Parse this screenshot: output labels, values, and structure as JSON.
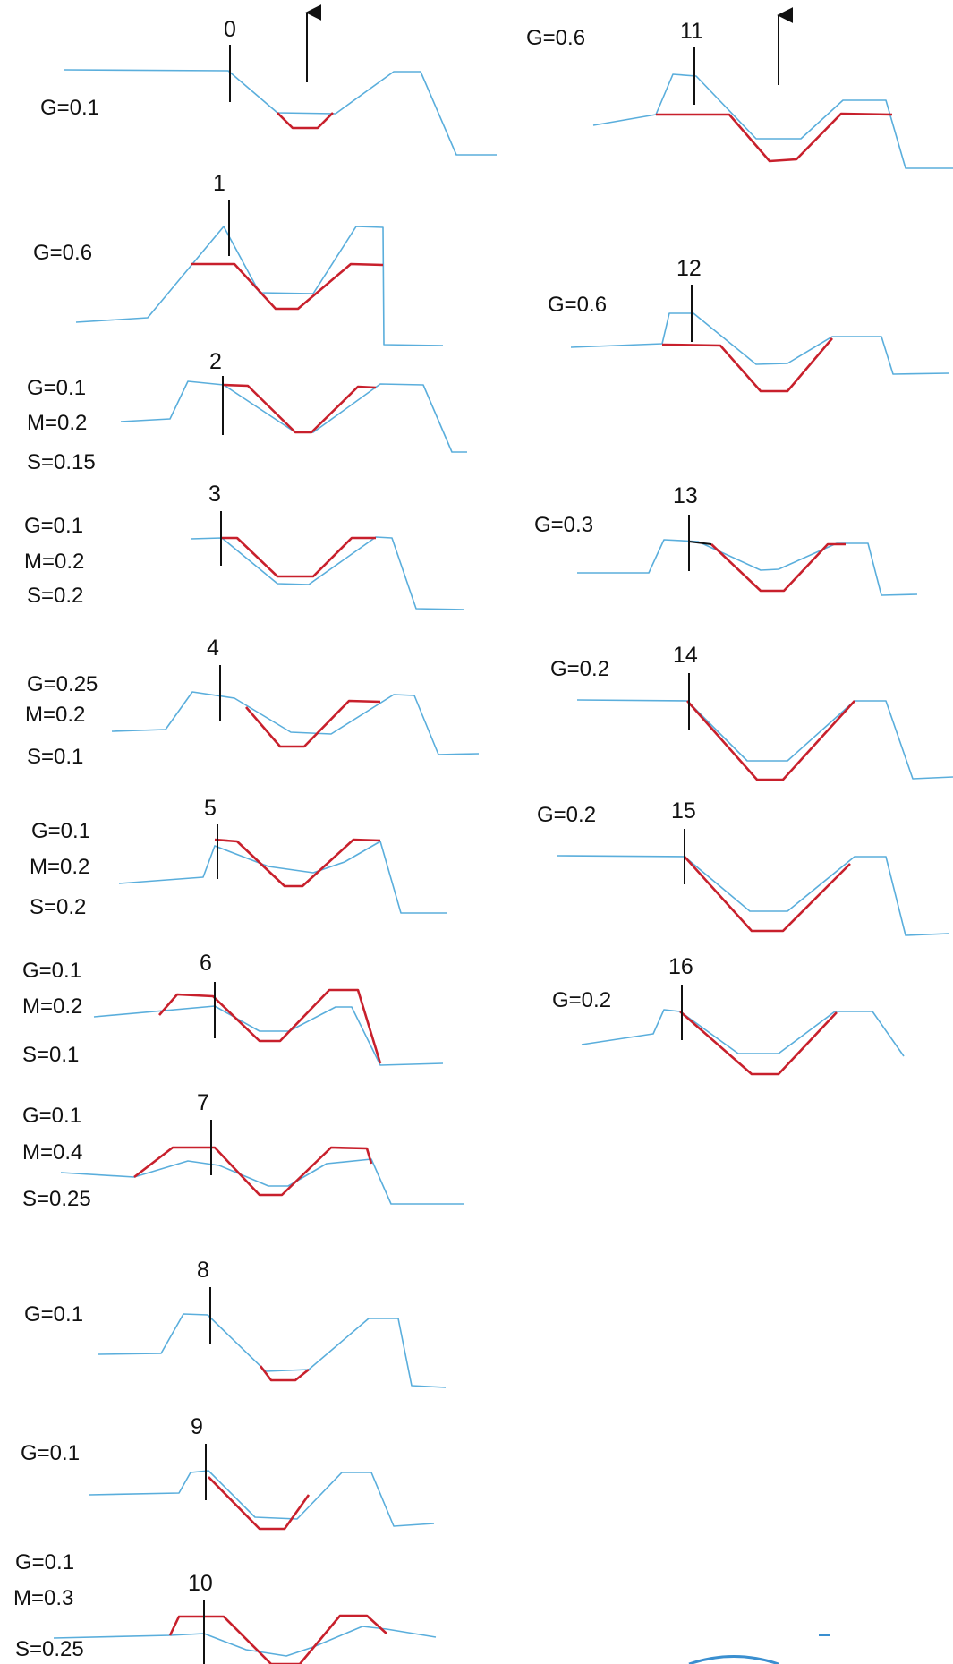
{
  "colors": {
    "blue_line": "#5aaedc",
    "red_line": "#c8202c",
    "marker": "#111111",
    "text": "#111111"
  },
  "panels": [
    {
      "index": "0",
      "params": [
        "G=0.1"
      ]
    },
    {
      "index": "1",
      "params": [
        "G=0.6"
      ]
    },
    {
      "index": "2",
      "params": [
        "G=0.1",
        "M=0.2",
        "S=0.15"
      ]
    },
    {
      "index": "3",
      "params": [
        "G=0.1",
        "M=0.2",
        "S=0.2"
      ]
    },
    {
      "index": "4",
      "params": [
        "G=0.25",
        "M=0.2",
        "S=0.1"
      ]
    },
    {
      "index": "5",
      "params": [
        "G=0.1",
        "M=0.2",
        "S=0.2"
      ]
    },
    {
      "index": "6",
      "params": [
        "G=0.1",
        "M=0.2",
        "S=0.1"
      ]
    },
    {
      "index": "7",
      "params": [
        "G=0.1",
        "M=0.4",
        "S=0.25"
      ]
    },
    {
      "index": "8",
      "params": [
        "G=0.1"
      ]
    },
    {
      "index": "9",
      "params": [
        "G=0.1"
      ]
    },
    {
      "index": "10",
      "params": [
        "G=0.1",
        "M=0.3",
        "S=0.25"
      ]
    },
    {
      "index": "11",
      "params": [
        "G=0.6"
      ]
    },
    {
      "index": "12",
      "params": [
        "G=0.6"
      ]
    },
    {
      "index": "13",
      "params": [
        "G=0.3"
      ]
    },
    {
      "index": "14",
      "params": [
        "G=0.2"
      ]
    },
    {
      "index": "15",
      "params": [
        "G=0.2"
      ]
    },
    {
      "index": "16",
      "params": [
        "G=0.2"
      ]
    }
  ]
}
